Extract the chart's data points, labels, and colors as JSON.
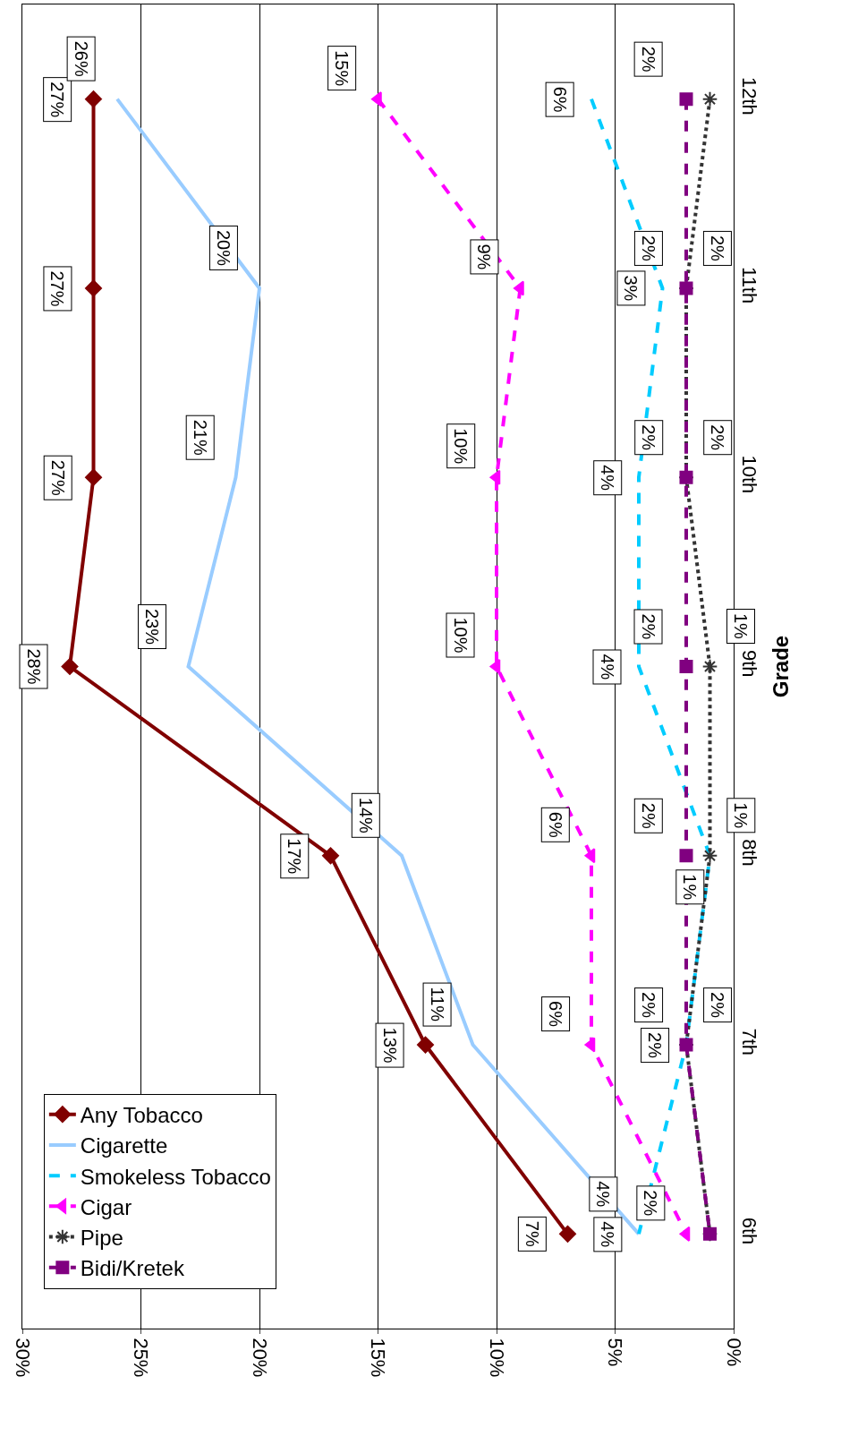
{
  "chart_data": {
    "type": "line",
    "orientation": "horizontal",
    "ylabel": "Grade",
    "categories": [
      "12th",
      "11th",
      "10th",
      "9th",
      "8th",
      "7th",
      "6th"
    ],
    "xlim": [
      30,
      0
    ],
    "xticks": [
      {
        "value": 30,
        "label": "30%"
      },
      {
        "value": 25,
        "label": "25%"
      },
      {
        "value": 20,
        "label": "20%"
      },
      {
        "value": 15,
        "label": "15%"
      },
      {
        "value": 10,
        "label": "10%"
      },
      {
        "value": 5,
        "label": "5%"
      },
      {
        "value": 0,
        "label": "0%"
      }
    ],
    "grid": "x",
    "legend": "bottom left",
    "series": [
      {
        "name": "Any Tobacco",
        "color": "#800000",
        "marker": "diamond",
        "line_style": "solid",
        "values": [
          27,
          27,
          27,
          28,
          17,
          13,
          7
        ],
        "value_labels": [
          "27%",
          "27%",
          "27%",
          "28%",
          "17%",
          "13%",
          "7%"
        ]
      },
      {
        "name": "Cigarette",
        "color": "#99ccff",
        "marker": "none",
        "line_style": "solid",
        "values": [
          26,
          20,
          21,
          23,
          14,
          11,
          4
        ],
        "value_labels": [
          "26%",
          "20%",
          "21%",
          "23%",
          "14%",
          "11%",
          "4%"
        ]
      },
      {
        "name": "Smokeless Tobacco",
        "color": "#00ccff",
        "marker": "none",
        "line_style": "dashed",
        "values": [
          6,
          3,
          4,
          4,
          1,
          2,
          4
        ],
        "value_labels": [
          "6%",
          "3%",
          "4%",
          "4%",
          "1%",
          "2%",
          "4%"
        ]
      },
      {
        "name": "Cigar",
        "color": "#ff00ff",
        "marker": "triangle",
        "line_style": "dashed",
        "values": [
          15,
          9,
          10,
          10,
          6,
          6,
          2
        ],
        "value_labels": [
          "15%",
          "9%",
          "10%",
          "10%",
          "6%",
          "6%",
          "2%"
        ]
      },
      {
        "name": "Pipe",
        "color": "#333333",
        "marker": "cross",
        "line_style": "dotted",
        "values": [
          1,
          2,
          2,
          1,
          1,
          2,
          1
        ],
        "value_labels": [
          null,
          "2%",
          "2%",
          "1%",
          "1%",
          "2%",
          null
        ]
      },
      {
        "name": "Bidi/Kretek",
        "color": "#800080",
        "marker": "square",
        "line_style": "dashed",
        "values": [
          2,
          2,
          2,
          2,
          2,
          2,
          1
        ],
        "value_labels": [
          "2%",
          "2%",
          "2%",
          "2%",
          "2%",
          "2%",
          null
        ]
      }
    ]
  }
}
